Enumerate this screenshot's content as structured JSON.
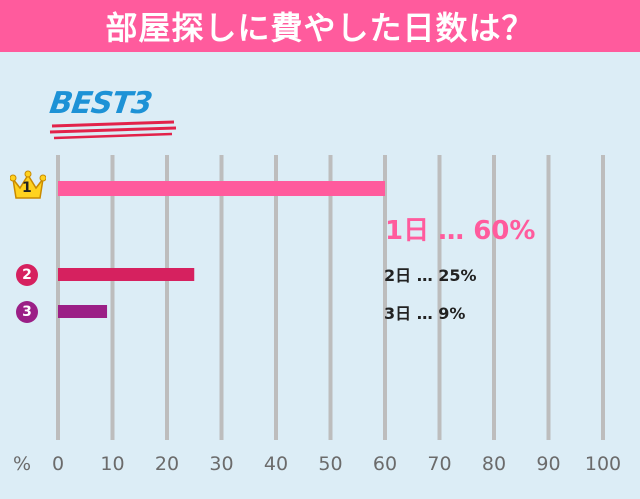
{
  "header": {
    "title": "部屋探しに費やした日数は？"
  },
  "badge": {
    "text": "BEST3"
  },
  "ranks": [
    {
      "label": "1",
      "icon": "crown-icon"
    },
    {
      "label": "2",
      "icon": "circle-number-icon"
    },
    {
      "label": "3",
      "icon": "circle-number-icon"
    }
  ],
  "results": [
    {
      "text": "1日 … 60%"
    },
    {
      "text": "2日 … 25%"
    },
    {
      "text": "3日 … 9%"
    }
  ],
  "colors": {
    "header_bg": "#ff5b9d",
    "background": "#dcedf6",
    "grid": "#bdbdbd",
    "bar1": "#ff5b9d",
    "bar2": "#d6215f",
    "bar3": "#9b1f86",
    "badge_blue": "#1d92d6",
    "badge_red": "#e2224a",
    "crown": "#ffd21f",
    "rank2": "#d6215f",
    "rank3": "#9b1f86"
  },
  "chart_data": {
    "type": "bar",
    "orientation": "horizontal",
    "categories": [
      "1日",
      "2日",
      "3日"
    ],
    "values": [
      60,
      25,
      9
    ],
    "xlabel": "%",
    "xlim": [
      0,
      100
    ],
    "xticks": [
      0,
      10,
      20,
      30,
      40,
      50,
      60,
      70,
      80,
      90,
      100
    ],
    "grid": true
  }
}
